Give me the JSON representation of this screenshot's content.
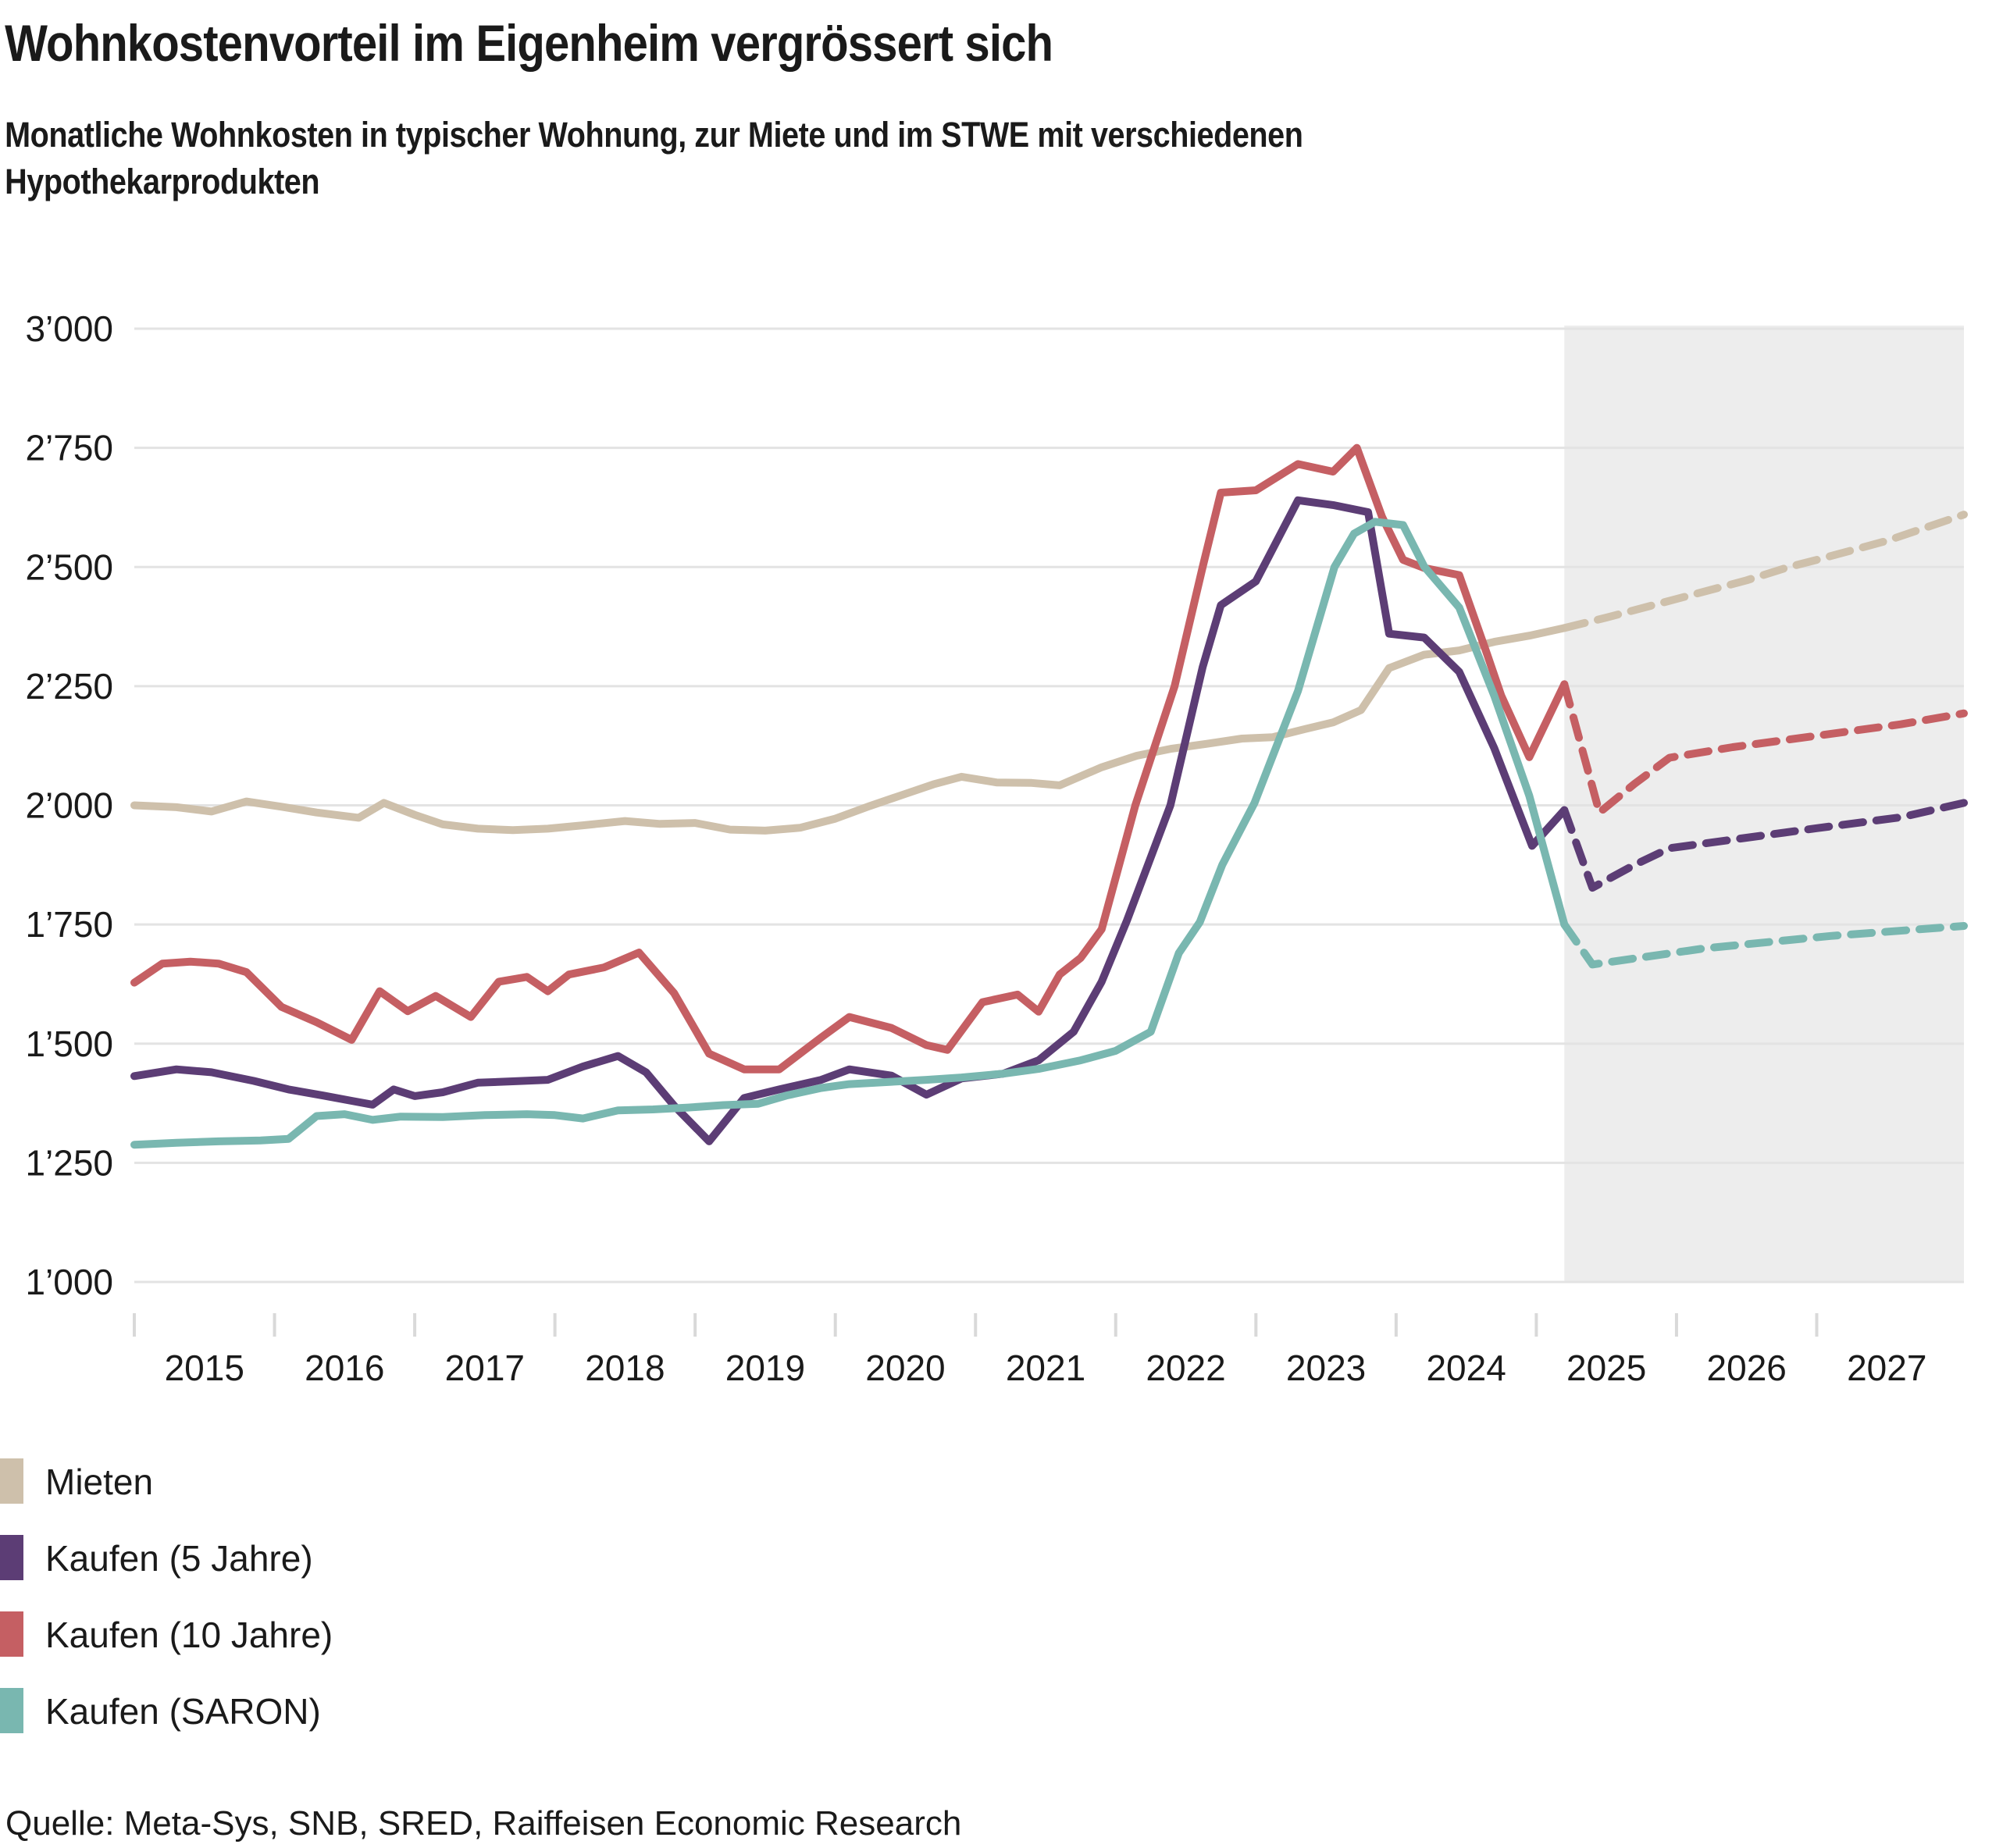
{
  "header": {
    "title": "Wohnkostenvorteil im Eigenheim vergrössert sich",
    "subtitle_line1": "Monatliche Wohnkosten in typischer Wohnung, zur Miete und im STWE mit verschiedenen",
    "subtitle_line2": "Hypothekarprodukten"
  },
  "source": "Quelle: Meta-Sys, SNB, SRED, Raiffeisen Economic Research",
  "legend": [
    {
      "label": "Mieten",
      "color": "#cec0ab"
    },
    {
      "label": "Kaufen (5 Jahre)",
      "color": "#5c3d75"
    },
    {
      "label": "Kaufen (10 Jahre)",
      "color": "#c55f63"
    },
    {
      "label": "Kaufen (SARON)",
      "color": "#79b7b0"
    }
  ],
  "chart_data": {
    "type": "line",
    "title": "Wohnkostenvorteil im Eigenheim vergrössert sich",
    "subtitle": "Monatliche Wohnkosten in typischer Wohnung, zur Miete und im STWE mit verschiedenen Hypothekarprodukten",
    "xlabel": "",
    "ylabel": "",
    "y_domain": [
      1000,
      3000
    ],
    "x_domain": [
      2015.0,
      2028.05
    ],
    "grid": true,
    "grid_color": "#e3e3e3",
    "tick_color": "#d9d9d9",
    "axis_text_color": "#1a1a1a",
    "y_ticks": [
      {
        "value": 3000,
        "label": "3’000"
      },
      {
        "value": 2750,
        "label": "2’750"
      },
      {
        "value": 2500,
        "label": "2’500"
      },
      {
        "value": 2250,
        "label": "2’250"
      },
      {
        "value": 2000,
        "label": "2’000"
      },
      {
        "value": 1750,
        "label": "1’750"
      },
      {
        "value": 1500,
        "label": "1’500"
      },
      {
        "value": 1250,
        "label": "1’250"
      },
      {
        "value": 1000,
        "label": "1’000"
      }
    ],
    "x_ticks": [
      2015,
      2016,
      2017,
      2018,
      2019,
      2020,
      2021,
      2022,
      2023,
      2024,
      2025,
      2026,
      2027
    ],
    "forecast_band": {
      "from": 2025.2,
      "to": 2028.05,
      "color": "#ededed"
    },
    "legend_position": "bottom-left",
    "series": [
      {
        "name": "Mieten",
        "color": "#cec0ab",
        "solid": [
          [
            2015.0,
            2000
          ],
          [
            2015.3,
            1996
          ],
          [
            2015.55,
            1987
          ],
          [
            2015.8,
            2008
          ],
          [
            2016.05,
            1997
          ],
          [
            2016.3,
            1985
          ],
          [
            2016.6,
            1974
          ],
          [
            2016.78,
            2005
          ],
          [
            2017.0,
            1980
          ],
          [
            2017.2,
            1960
          ],
          [
            2017.45,
            1951
          ],
          [
            2017.7,
            1948
          ],
          [
            2017.95,
            1951
          ],
          [
            2018.2,
            1958
          ],
          [
            2018.5,
            1967
          ],
          [
            2018.75,
            1961
          ],
          [
            2019.0,
            1963
          ],
          [
            2019.25,
            1949
          ],
          [
            2019.5,
            1947
          ],
          [
            2019.75,
            1953
          ],
          [
            2020.0,
            1972
          ],
          [
            2020.25,
            1999
          ],
          [
            2020.5,
            2024
          ],
          [
            2020.7,
            2044
          ],
          [
            2020.9,
            2060
          ],
          [
            2021.15,
            2048
          ],
          [
            2021.4,
            2047
          ],
          [
            2021.6,
            2042
          ],
          [
            2021.9,
            2080
          ],
          [
            2022.15,
            2104
          ],
          [
            2022.4,
            2119
          ],
          [
            2022.65,
            2129
          ],
          [
            2022.9,
            2140
          ],
          [
            2023.12,
            2143
          ],
          [
            2023.35,
            2160
          ],
          [
            2023.55,
            2174
          ],
          [
            2023.75,
            2200
          ],
          [
            2023.95,
            2288
          ],
          [
            2024.2,
            2316
          ],
          [
            2024.45,
            2325
          ],
          [
            2024.7,
            2343
          ],
          [
            2024.95,
            2356
          ],
          [
            2025.2,
            2372
          ]
        ],
        "forecast": [
          [
            2025.2,
            2372
          ],
          [
            2025.5,
            2394
          ],
          [
            2026.0,
            2433
          ],
          [
            2026.5,
            2472
          ],
          [
            2026.8,
            2500
          ],
          [
            2027.0,
            2515
          ],
          [
            2027.5,
            2555
          ],
          [
            2028.05,
            2610
          ]
        ]
      },
      {
        "name": "Kaufen (5 Jahre)",
        "color": "#5c3d75",
        "solid": [
          [
            2015.0,
            1432
          ],
          [
            2015.3,
            1446
          ],
          [
            2015.55,
            1440
          ],
          [
            2015.85,
            1422
          ],
          [
            2016.1,
            1404
          ],
          [
            2016.35,
            1391
          ],
          [
            2016.55,
            1380
          ],
          [
            2016.7,
            1372
          ],
          [
            2016.85,
            1404
          ],
          [
            2017.0,
            1390
          ],
          [
            2017.2,
            1398
          ],
          [
            2017.45,
            1418
          ],
          [
            2017.7,
            1421
          ],
          [
            2017.95,
            1424
          ],
          [
            2018.2,
            1452
          ],
          [
            2018.45,
            1474
          ],
          [
            2018.65,
            1440
          ],
          [
            2018.85,
            1370
          ],
          [
            2019.1,
            1295
          ],
          [
            2019.35,
            1386
          ],
          [
            2019.6,
            1404
          ],
          [
            2019.9,
            1424
          ],
          [
            2020.1,
            1446
          ],
          [
            2020.4,
            1433
          ],
          [
            2020.65,
            1393
          ],
          [
            2020.9,
            1427
          ],
          [
            2021.2,
            1437
          ],
          [
            2021.45,
            1465
          ],
          [
            2021.7,
            1525
          ],
          [
            2021.9,
            1630
          ],
          [
            2022.08,
            1758
          ],
          [
            2022.39,
            2000
          ],
          [
            2022.62,
            2290
          ],
          [
            2022.75,
            2420
          ],
          [
            2023.0,
            2470
          ],
          [
            2023.3,
            2640
          ],
          [
            2023.55,
            2630
          ],
          [
            2023.8,
            2615
          ],
          [
            2023.95,
            2360
          ],
          [
            2024.2,
            2352
          ],
          [
            2024.45,
            2280
          ],
          [
            2024.7,
            2120
          ],
          [
            2024.97,
            1915
          ],
          [
            2025.2,
            1990
          ]
        ],
        "forecast": [
          [
            2025.2,
            1990
          ],
          [
            2025.4,
            1827
          ],
          [
            2025.7,
            1875
          ],
          [
            2025.95,
            1910
          ],
          [
            2026.5,
            1932
          ],
          [
            2027.0,
            1952
          ],
          [
            2027.6,
            1975
          ],
          [
            2028.05,
            2005
          ]
        ]
      },
      {
        "name": "Kaufen (10 Jahre)",
        "color": "#c55f63",
        "solid": [
          [
            2015.0,
            1628
          ],
          [
            2015.2,
            1668
          ],
          [
            2015.4,
            1672
          ],
          [
            2015.6,
            1668
          ],
          [
            2015.8,
            1650
          ],
          [
            2016.05,
            1577
          ],
          [
            2016.3,
            1545
          ],
          [
            2016.55,
            1508
          ],
          [
            2016.75,
            1610
          ],
          [
            2016.95,
            1568
          ],
          [
            2017.15,
            1600
          ],
          [
            2017.4,
            1556
          ],
          [
            2017.6,
            1630
          ],
          [
            2017.8,
            1640
          ],
          [
            2017.95,
            1610
          ],
          [
            2018.1,
            1645
          ],
          [
            2018.35,
            1660
          ],
          [
            2018.6,
            1691
          ],
          [
            2018.85,
            1606
          ],
          [
            2019.1,
            1479
          ],
          [
            2019.35,
            1446
          ],
          [
            2019.6,
            1446
          ],
          [
            2019.9,
            1513
          ],
          [
            2020.1,
            1556
          ],
          [
            2020.4,
            1533
          ],
          [
            2020.65,
            1497
          ],
          [
            2020.8,
            1487
          ],
          [
            2021.05,
            1587
          ],
          [
            2021.3,
            1603
          ],
          [
            2021.45,
            1567
          ],
          [
            2021.6,
            1645
          ],
          [
            2021.75,
            1680
          ],
          [
            2021.9,
            1740
          ],
          [
            2022.14,
            2000
          ],
          [
            2022.42,
            2250
          ],
          [
            2022.62,
            2500
          ],
          [
            2022.75,
            2656
          ],
          [
            2023.0,
            2661
          ],
          [
            2023.3,
            2716
          ],
          [
            2023.55,
            2700
          ],
          [
            2023.72,
            2750
          ],
          [
            2023.9,
            2605
          ],
          [
            2024.05,
            2515
          ],
          [
            2024.2,
            2498
          ],
          [
            2024.45,
            2483
          ],
          [
            2024.65,
            2316
          ],
          [
            2024.75,
            2230
          ],
          [
            2024.95,
            2101
          ],
          [
            2025.2,
            2254
          ]
        ],
        "forecast": [
          [
            2025.2,
            2254
          ],
          [
            2025.45,
            1985
          ],
          [
            2025.7,
            2045
          ],
          [
            2025.95,
            2100
          ],
          [
            2026.4,
            2122
          ],
          [
            2027.0,
            2146
          ],
          [
            2027.6,
            2170
          ],
          [
            2028.05,
            2193
          ]
        ]
      },
      {
        "name": "Kaufen (SARON)",
        "color": "#79b7b0",
        "solid": [
          [
            2015.0,
            1288
          ],
          [
            2015.3,
            1292
          ],
          [
            2015.6,
            1295
          ],
          [
            2015.9,
            1297
          ],
          [
            2016.1,
            1300
          ],
          [
            2016.3,
            1348
          ],
          [
            2016.5,
            1352
          ],
          [
            2016.7,
            1340
          ],
          [
            2016.9,
            1347
          ],
          [
            2017.2,
            1346
          ],
          [
            2017.5,
            1350
          ],
          [
            2017.8,
            1352
          ],
          [
            2018.0,
            1350
          ],
          [
            2018.2,
            1343
          ],
          [
            2018.45,
            1360
          ],
          [
            2018.7,
            1362
          ],
          [
            2018.95,
            1366
          ],
          [
            2019.2,
            1371
          ],
          [
            2019.45,
            1374
          ],
          [
            2019.65,
            1391
          ],
          [
            2019.9,
            1407
          ],
          [
            2020.1,
            1415
          ],
          [
            2020.4,
            1420
          ],
          [
            2020.65,
            1424
          ],
          [
            2020.9,
            1429
          ],
          [
            2021.2,
            1437
          ],
          [
            2021.45,
            1447
          ],
          [
            2021.75,
            1465
          ],
          [
            2022.0,
            1485
          ],
          [
            2022.25,
            1525
          ],
          [
            2022.45,
            1690
          ],
          [
            2022.6,
            1755
          ],
          [
            2022.76,
            1875
          ],
          [
            2022.99,
            2005
          ],
          [
            2023.3,
            2240
          ],
          [
            2023.56,
            2500
          ],
          [
            2023.7,
            2570
          ],
          [
            2023.85,
            2595
          ],
          [
            2024.05,
            2588
          ],
          [
            2024.2,
            2501
          ],
          [
            2024.45,
            2415
          ],
          [
            2024.7,
            2230
          ],
          [
            2024.95,
            2020
          ],
          [
            2025.2,
            1750
          ]
        ],
        "forecast": [
          [
            2025.2,
            1750
          ],
          [
            2025.4,
            1666
          ],
          [
            2026.2,
            1700
          ],
          [
            2027.1,
            1726
          ],
          [
            2028.05,
            1747
          ]
        ]
      }
    ]
  }
}
